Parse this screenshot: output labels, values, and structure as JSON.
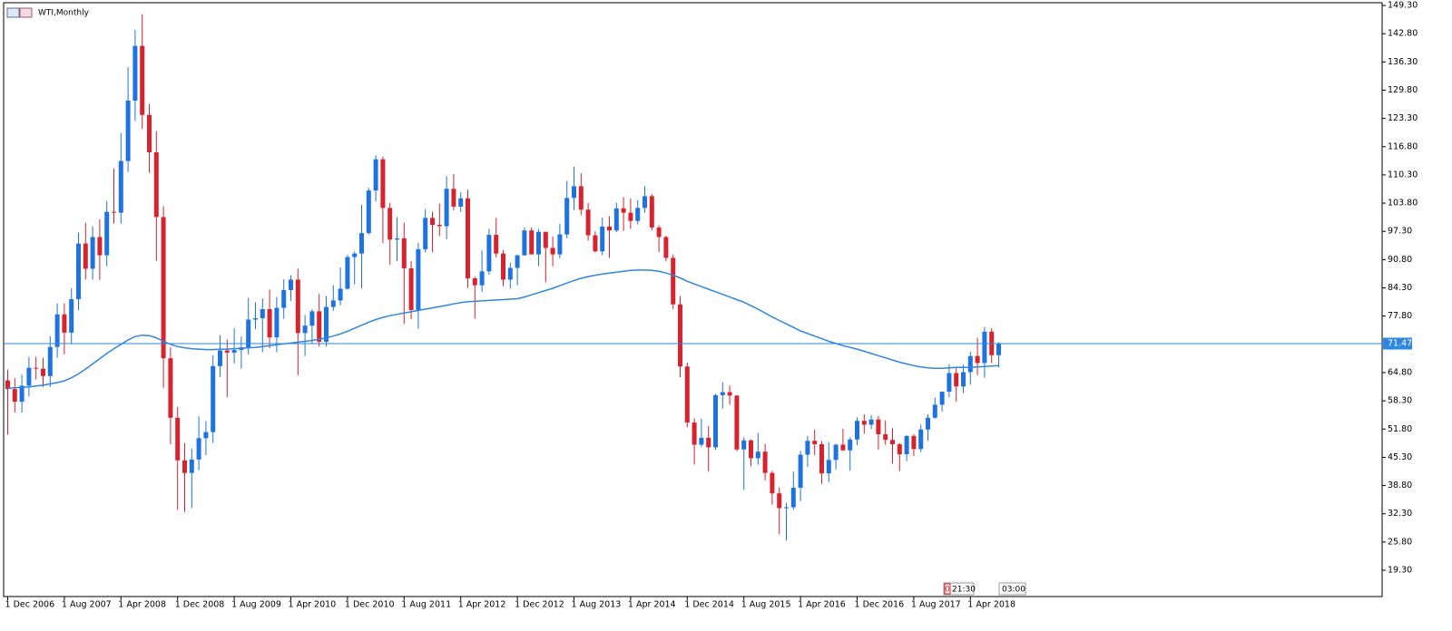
{
  "chart_data": {
    "type": "candlestick",
    "title": "WTI,Monthly",
    "categories": [
      "1 Dec 2006",
      null,
      null,
      null,
      null,
      null,
      null,
      null,
      "1 Aug 2007",
      null,
      null,
      null,
      null,
      null,
      null,
      null,
      "1 Apr 2008",
      null,
      null,
      null,
      null,
      null,
      null,
      null,
      "1 Dec 2008",
      null,
      null,
      null,
      null,
      null,
      null,
      null,
      "1 Aug 2009",
      null,
      null,
      null,
      null,
      null,
      null,
      null,
      "1 Apr 2010",
      null,
      null,
      null,
      null,
      null,
      null,
      null,
      "1 Dec 2010",
      null,
      null,
      null,
      null,
      null,
      null,
      null,
      "1 Aug 2011",
      null,
      null,
      null,
      null,
      null,
      null,
      null,
      "1 Apr 2012",
      null,
      null,
      null,
      null,
      null,
      null,
      null,
      "1 Dec 2012",
      null,
      null,
      null,
      null,
      null,
      null,
      null,
      "1 Aug 2013",
      null,
      null,
      null,
      null,
      null,
      null,
      null,
      "1 Apr 2014",
      null,
      null,
      null,
      null,
      null,
      null,
      null,
      "1 Dec 2014",
      null,
      null,
      null,
      null,
      null,
      null,
      null,
      "1 Aug 2015",
      null,
      null,
      null,
      null,
      null,
      null,
      null,
      "1 Apr 2016",
      null,
      null,
      null,
      null,
      null,
      null,
      null,
      "1 Dec 2016",
      null,
      null,
      null,
      null,
      null,
      null,
      null,
      "1 Aug 2017",
      null,
      null,
      null,
      null,
      null,
      null,
      null,
      "1 Apr 2018",
      null,
      null,
      null,
      null
    ],
    "open": [
      63.0,
      61.0,
      58.1,
      61.8,
      65.9,
      65.7,
      64.0,
      70.7,
      78.2,
      74.0,
      81.7,
      94.5,
      88.7,
      96.0,
      91.8,
      101.8,
      101.6,
      113.5,
      127.4,
      140.0,
      124.1,
      115.5,
      100.6,
      68.1,
      54.4,
      44.6,
      41.7,
      44.8,
      49.7,
      51.1,
      66.3,
      69.9,
      69.4,
      70.0,
      70.6,
      77.0,
      77.3,
      79.4,
      72.9,
      79.7,
      83.8,
      86.2,
      73.9,
      75.6,
      78.9,
      71.9,
      79.9,
      81.4,
      84.1,
      91.4,
      92.2,
      96.9,
      106.7,
      113.9,
      102.7,
      95.4,
      95.7,
      88.8,
      79.2,
      93.2,
      100.4,
      98.8,
      98.5,
      107.1,
      103.0,
      104.9,
      86.5,
      84.9,
      88.1,
      96.5,
      92.2,
      86.2,
      88.9,
      91.8,
      97.5,
      92.0,
      97.2,
      93.5,
      92.0,
      96.6,
      105.0,
      107.7,
      102.3,
      96.4,
      92.7,
      98.4,
      97.5,
      102.6,
      101.6,
      99.7,
      102.7,
      105.4,
      98.2,
      96.0,
      91.2,
      80.5,
      66.2,
      53.3,
      48.2,
      49.8,
      47.6,
      59.6,
      60.3,
      59.5,
      47.1,
      49.2,
      45.1,
      46.6,
      41.7,
      37.0,
      33.6,
      33.8,
      38.3,
      45.9,
      49.1,
      48.3,
      41.6,
      44.7,
      48.2,
      46.9,
      49.4,
      53.7,
      52.8,
      54.0,
      50.6,
      49.3,
      48.3,
      46.0,
      50.2,
      47.2,
      51.7,
      54.4,
      57.4,
      60.4,
      64.7,
      61.6,
      64.9,
      68.6,
      67.0,
      74.2,
      68.8
    ],
    "high": [
      65.5,
      63.5,
      64.3,
      68.4,
      68.4,
      68.2,
      73.2,
      80.7,
      80.7,
      84.2,
      97.0,
      99.3,
      98.5,
      100.1,
      104.3,
      111.8,
      119.9,
      135.1,
      143.7,
      147.3,
      126.6,
      120.4,
      103.1,
      70.6,
      56.9,
      48.6,
      47.3,
      54.7,
      53.6,
      68.8,
      73.4,
      72.4,
      75.0,
      73.1,
      82.0,
      81.0,
      81.9,
      83.9,
      82.2,
      86.3,
      87.2,
      88.7,
      78.1,
      79.4,
      82.9,
      82.4,
      84.9,
      89.0,
      91.9,
      92.6,
      103.4,
      107.3,
      114.8,
      114.5,
      103.9,
      100.6,
      99.3,
      90.5,
      94.7,
      102.4,
      101.8,
      103.7,
      110.0,
      110.5,
      106.3,
      106.9,
      86.9,
      92.9,
      97.9,
      100.4,
      93.0,
      90.1,
      91.9,
      98.2,
      98.2,
      97.8,
      97.2,
      96.1,
      99.0,
      108.9,
      112.2,
      110.7,
      103.9,
      97.3,
      100.5,
      100.8,
      103.9,
      105.2,
      104.9,
      104.5,
      107.7,
      105.9,
      98.7,
      96.3,
      92.0,
      82.4,
      67.1,
      54.3,
      54.2,
      52.5,
      59.9,
      62.6,
      61.8,
      59.6,
      49.9,
      49.4,
      50.9,
      48.4,
      42.2,
      38.4,
      34.8,
      42.0,
      46.8,
      50.2,
      51.7,
      49.0,
      48.8,
      48.4,
      51.9,
      49.9,
      54.5,
      55.2,
      55.0,
      54.8,
      53.8,
      52.0,
      48.6,
      50.4,
      50.6,
      52.8,
      55.2,
      59.0,
      60.5,
      66.7,
      66.0,
      66.6,
      69.6,
      72.8,
      75.3,
      75.0,
      71.8
    ],
    "low": [
      50.5,
      55.6,
      55.6,
      59.3,
      63.2,
      61.5,
      61.5,
      68.2,
      69.0,
      71.5,
      79.2,
      86.2,
      86.2,
      86.1,
      89.3,
      99.1,
      99.1,
      111.0,
      122.7,
      120.9,
      110.8,
      90.5,
      61.3,
      48.3,
      33.2,
      32.7,
      33.6,
      42.3,
      45.8,
      48.6,
      63.8,
      59.1,
      66.9,
      65.7,
      69.0,
      74.8,
      69.5,
      70.4,
      69.5,
      77.2,
      81.3,
      64.2,
      68.6,
      71.4,
      70.8,
      70.8,
      79.0,
      80.3,
      83.9,
      85.1,
      84.2,
      96.6,
      104.2,
      94.6,
      89.6,
      90.4,
      76.0,
      77.1,
      74.9,
      92.5,
      92.5,
      96.2,
      95.5,
      102.1,
      101.8,
      84.3,
      77.2,
      83.4,
      87.3,
      91.3,
      84.7,
      84.1,
      84.9,
      91.7,
      92.0,
      89.3,
      85.6,
      89.3,
      91.1,
      95.7,
      102.2,
      101.0,
      95.2,
      92.5,
      91.8,
      91.2,
      97.1,
      97.4,
      97.9,
      98.9,
      101.6,
      97.5,
      92.5,
      90.4,
      79.4,
      63.7,
      52.2,
      43.6,
      47.7,
      42.0,
      47.0,
      56.5,
      57.4,
      46.7,
      37.8,
      43.2,
      43.6,
      40.0,
      34.4,
      27.6,
      26.1,
      33.2,
      35.2,
      43.1,
      45.8,
      39.2,
      39.6,
      42.5,
      46.8,
      42.2,
      48.1,
      50.7,
      51.8,
      47.1,
      48.2,
      43.8,
      42.1,
      44.4,
      45.6,
      46.5,
      49.1,
      54.2,
      55.8,
      59.1,
      58.1,
      60.1,
      62.0,
      64.2,
      63.6,
      67.0,
      66.0
    ],
    "close": [
      61.0,
      58.1,
      61.8,
      65.9,
      65.7,
      64.0,
      70.7,
      78.2,
      74.0,
      81.7,
      94.5,
      88.7,
      96.0,
      91.8,
      101.8,
      101.6,
      113.5,
      127.4,
      140.0,
      124.1,
      115.5,
      100.6,
      68.1,
      54.4,
      44.6,
      41.7,
      44.8,
      49.7,
      51.1,
      66.3,
      69.9,
      69.4,
      70.0,
      70.6,
      77.0,
      77.3,
      79.4,
      72.9,
      79.7,
      83.8,
      86.2,
      73.9,
      75.6,
      78.9,
      71.9,
      79.9,
      81.4,
      84.1,
      91.4,
      92.2,
      96.9,
      106.7,
      113.9,
      102.7,
      95.4,
      95.7,
      88.8,
      79.2,
      93.2,
      100.4,
      98.8,
      98.5,
      107.1,
      103.0,
      104.9,
      86.5,
      84.9,
      88.1,
      96.5,
      92.2,
      86.2,
      88.9,
      91.8,
      97.5,
      92.0,
      97.2,
      93.5,
      92.0,
      96.6,
      105.0,
      107.7,
      102.3,
      96.4,
      92.7,
      98.4,
      97.5,
      102.6,
      101.6,
      99.7,
      102.7,
      105.4,
      98.2,
      96.0,
      91.2,
      80.5,
      66.2,
      53.3,
      48.2,
      49.8,
      47.6,
      59.6,
      60.3,
      59.5,
      47.1,
      49.2,
      45.1,
      46.6,
      41.7,
      37.0,
      33.6,
      33.8,
      38.3,
      45.9,
      49.1,
      48.3,
      41.6,
      44.7,
      48.2,
      46.9,
      49.4,
      53.7,
      52.8,
      54.0,
      50.6,
      49.3,
      48.3,
      46.0,
      50.2,
      47.2,
      51.7,
      54.4,
      57.4,
      60.4,
      64.7,
      61.6,
      64.9,
      68.6,
      67.0,
      74.2,
      68.8,
      71.47
    ],
    "up_color": "#1e73e0",
    "down_color": "#d8232f",
    "moving_average": {
      "color": "#2f86e0",
      "values": [
        61.2,
        61.3,
        61.4,
        61.5,
        61.7,
        61.9,
        62.2,
        62.5,
        62.9,
        63.6,
        64.5,
        65.6,
        66.8,
        68.0,
        69.2,
        70.3,
        71.3,
        72.3,
        73.1,
        73.4,
        73.3,
        72.8,
        72.0,
        71.3,
        70.8,
        70.5,
        70.3,
        70.2,
        70.1,
        70.1,
        70.2,
        70.2,
        70.3,
        70.4,
        70.5,
        70.6,
        70.8,
        71.0,
        71.2,
        71.4,
        71.6,
        71.8,
        72.0,
        72.2,
        72.5,
        72.8,
        73.2,
        73.7,
        74.3,
        75.0,
        75.7,
        76.4,
        77.0,
        77.5,
        77.9,
        78.2,
        78.5,
        78.8,
        79.1,
        79.4,
        79.7,
        80.0,
        80.3,
        80.6,
        80.9,
        81.1,
        81.2,
        81.3,
        81.4,
        81.5,
        81.6,
        81.7,
        81.8,
        82.2,
        82.7,
        83.2,
        83.7,
        84.2,
        84.8,
        85.4,
        86.0,
        86.5,
        86.9,
        87.2,
        87.5,
        87.7,
        87.9,
        88.1,
        88.3,
        88.4,
        88.4,
        88.3,
        88.1,
        87.7,
        87.2,
        86.6,
        85.8,
        85.2,
        84.6,
        84.0,
        83.4,
        82.8,
        82.2,
        81.6,
        81.0,
        80.2,
        79.4,
        78.5,
        77.6,
        76.8,
        76.0,
        75.2,
        74.4,
        73.8,
        73.2,
        72.6,
        72.0,
        71.5,
        71.0,
        70.6,
        70.2,
        69.7,
        69.2,
        68.7,
        68.2,
        67.7,
        67.2,
        66.8,
        66.4,
        66.1,
        65.9,
        65.8,
        65.8,
        65.9,
        66.0,
        66.0,
        66.0,
        66.1,
        66.2,
        66.3,
        66.4
      ]
    },
    "last_price": 71.47,
    "last_price_color": "#2f86e0",
    "ylim": [
      13.25,
      149.93
    ],
    "yticks": [
      {
        "value": 149.3,
        "label": "149.30"
      },
      {
        "value": 142.8,
        "label": "142.80"
      },
      {
        "value": 136.3,
        "label": "136.30"
      },
      {
        "value": 129.8,
        "label": "129.80"
      },
      {
        "value": 123.3,
        "label": "123.30"
      },
      {
        "value": 116.8,
        "label": "116.80"
      },
      {
        "value": 110.3,
        "label": "110.30"
      },
      {
        "value": 103.8,
        "label": "103.80"
      },
      {
        "value": 97.3,
        "label": "97.30"
      },
      {
        "value": 90.8,
        "label": "90.80"
      },
      {
        "value": 84.3,
        "label": "84.30"
      },
      {
        "value": 77.8,
        "label": "77.80"
      },
      {
        "value": 64.8,
        "label": "64.80"
      },
      {
        "value": 58.3,
        "label": "58.30"
      },
      {
        "value": 51.8,
        "label": "51.80"
      },
      {
        "value": 45.3,
        "label": "45.30"
      },
      {
        "value": 38.8,
        "label": "38.80"
      },
      {
        "value": 32.3,
        "label": "32.30"
      },
      {
        "value": 25.8,
        "label": "25.80"
      },
      {
        "value": 19.3,
        "label": "19.30"
      }
    ],
    "grid": false,
    "timer_marker": "0",
    "timer": "21:30",
    "server_time": "03:00"
  }
}
